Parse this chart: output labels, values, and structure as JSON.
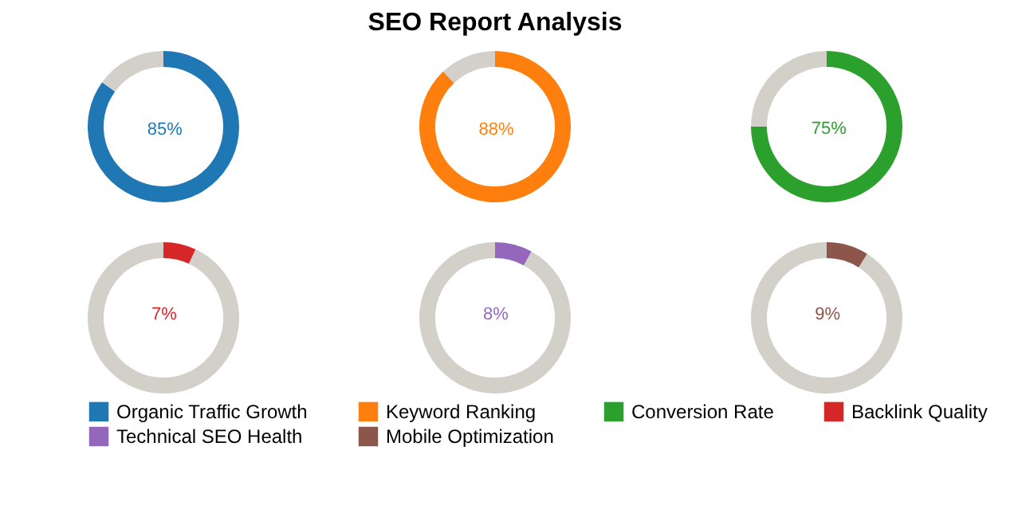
{
  "chart_data": [
    {
      "type": "donut",
      "categories": [
        "Organic Traffic Growth",
        null
      ],
      "values": [
        85,
        15
      ],
      "colors": [
        "#1f77b4",
        "#d3d0c9"
      ],
      "value_labels": [
        "85%",
        null
      ],
      "legend": "bottom"
    },
    {
      "type": "donut",
      "title": "SEO Report Analysis",
      "categories": [
        "Keyword Ranking",
        null
      ],
      "values": [
        88,
        12
      ],
      "colors": [
        "#ff7f0e",
        "#d3d0c9"
      ],
      "value_labels": [
        "88%",
        null
      ],
      "legend": "bottom"
    },
    {
      "type": "donut",
      "categories": [
        "Conversion Rate",
        null
      ],
      "values": [
        75,
        25
      ],
      "colors": [
        "#2ca02c",
        "#d3d0c9"
      ],
      "value_labels": [
        "75%",
        null
      ],
      "legend": "bottom"
    },
    {
      "type": "donut",
      "categories": [
        "Backlink Quality",
        null
      ],
      "values": [
        7,
        93
      ],
      "colors": [
        "#d62728",
        "#d3d0c9"
      ],
      "value_labels": [
        "7%",
        null
      ],
      "legend": "bottom"
    },
    {
      "type": "donut",
      "categories": [
        "Technical SEO Health",
        null
      ],
      "values": [
        8,
        92
      ],
      "colors": [
        "#9467bd",
        "#d3d0c9"
      ],
      "value_labels": [
        "8%",
        null
      ],
      "legend": "bottom"
    },
    {
      "type": "donut",
      "categories": [
        "Mobile Optimization",
        null
      ],
      "values": [
        9,
        91
      ],
      "colors": [
        "#8c564b",
        "#d3d0c9"
      ],
      "value_labels": [
        "9%",
        null
      ],
      "legend": "bottom"
    }
  ]
}
